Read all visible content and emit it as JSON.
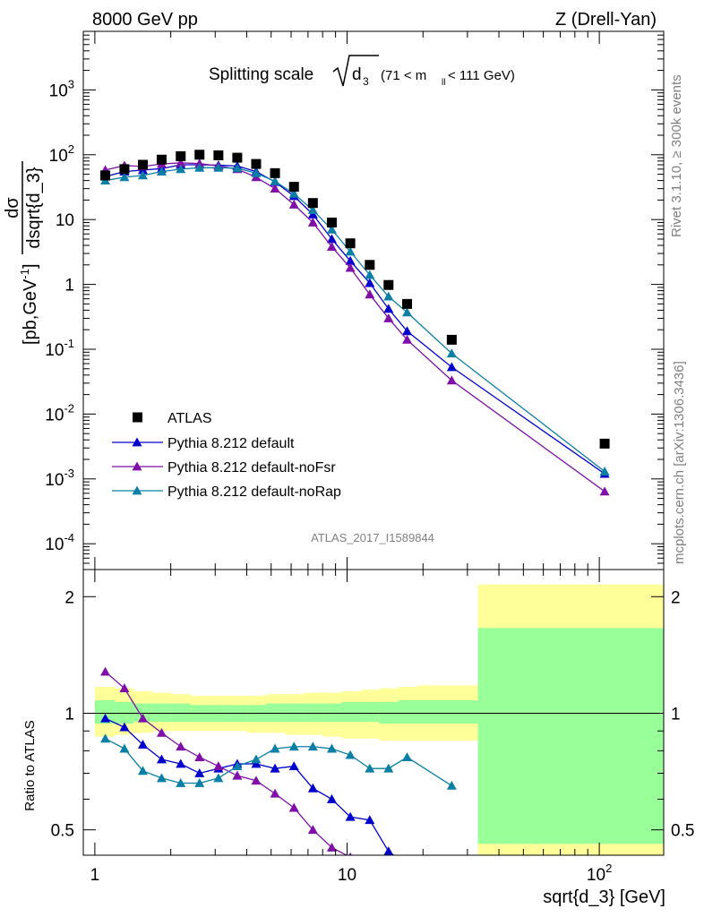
{
  "header": {
    "left": "8000 GeV pp",
    "right": "Z (Drell-Yan)"
  },
  "side": {
    "top": "Rivet 3.1.10, ≥ 300k events",
    "bottom": "mcplots.cern.ch [arXiv:1306.3436]"
  },
  "analysis_id": "ATLAS_2017_I1589844",
  "colors": {
    "atlas": "#000000",
    "default": "#0000cc",
    "noFsr": "#7f0fa6",
    "noRap": "#0a7fa6",
    "band_yellow": "#ffff99",
    "band_green": "#99ff99"
  },
  "chart_data": [
    {
      "type": "scatter",
      "title_main": "Splitting scale",
      "title_sym": "d",
      "title_sub": "3",
      "title_range_pre": "(71 < m",
      "title_range_sub": "ll",
      "title_range_post": " < 111 GeV)",
      "ylabel_num": "dσ",
      "ylabel_den": "dsqrt{d_3}",
      "ylabel_units": "[pb,GeV",
      "ylabel_units_sup": "-1",
      "ylabel_units_close": "]",
      "xscale": "log",
      "yscale": "log",
      "xlim": [
        0.9,
        180
      ],
      "ylim": [
        4e-05,
        8000
      ],
      "yticks": [
        {
          "v": 0.0001,
          "base": "10",
          "exp": "-4"
        },
        {
          "v": 0.001,
          "base": "10",
          "exp": "-3"
        },
        {
          "v": 0.01,
          "base": "10",
          "exp": "-2"
        },
        {
          "v": 0.1,
          "base": "10",
          "exp": "-1"
        },
        {
          "v": 1,
          "base": "1",
          "exp": ""
        },
        {
          "v": 10,
          "base": "10",
          "exp": ""
        },
        {
          "v": 100,
          "base": "10",
          "exp": "2"
        },
        {
          "v": 1000,
          "base": "10",
          "exp": "3"
        }
      ],
      "legend_position": "bottom-left",
      "series": [
        {
          "name": "ATLAS",
          "marker": "square",
          "x": [
            1.1,
            1.31,
            1.55,
            1.84,
            2.19,
            2.6,
            3.09,
            3.67,
            4.36,
            5.18,
            6.16,
            7.32,
            8.7,
            10.3,
            12.3,
            14.6,
            17.3,
            26.0,
            105.0
          ],
          "y": [
            48,
            60,
            70,
            84,
            95,
            100,
            98,
            90,
            72,
            52,
            32,
            18,
            9,
            4.3,
            2.0,
            0.98,
            0.5,
            0.14,
            0.0035
          ]
        },
        {
          "name": "Pythia 8.212 default",
          "marker": "triangle",
          "x": [
            1.1,
            1.31,
            1.55,
            1.84,
            2.19,
            2.6,
            3.09,
            3.67,
            4.36,
            5.18,
            6.16,
            7.32,
            8.7,
            10.3,
            12.3,
            14.6,
            17.3,
            26.0,
            105.0
          ],
          "y": [
            46,
            55,
            58,
            61,
            70,
            70,
            69,
            67,
            55,
            38,
            23,
            12,
            5.0,
            2.3,
            1.05,
            0.42,
            0.19,
            0.053,
            0.0012
          ]
        },
        {
          "name": "Pythia 8.212 default-noFsr",
          "marker": "triangle",
          "x": [
            1.1,
            1.31,
            1.55,
            1.84,
            2.19,
            2.6,
            3.09,
            3.67,
            4.36,
            5.18,
            6.16,
            7.32,
            8.7,
            10.3,
            12.3,
            14.6,
            17.3,
            26.0,
            105.0
          ],
          "y": [
            58,
            68,
            66,
            72,
            75,
            73,
            67,
            60,
            45,
            30,
            17,
            9.0,
            3.8,
            1.8,
            0.7,
            0.3,
            0.14,
            0.033,
            0.00064
          ]
        },
        {
          "name": "Pythia 8.212 default-noRap",
          "marker": "triangle",
          "x": [
            1.1,
            1.31,
            1.55,
            1.84,
            2.19,
            2.6,
            3.09,
            3.67,
            4.36,
            5.18,
            6.16,
            7.32,
            8.7,
            10.3,
            12.3,
            14.6,
            17.3,
            26.0,
            105.0
          ],
          "y": [
            40,
            45,
            48,
            55,
            60,
            63,
            63,
            62,
            52,
            39,
            25,
            14,
            7.0,
            3.2,
            1.4,
            0.65,
            0.37,
            0.086,
            0.0013
          ]
        }
      ]
    },
    {
      "type": "line",
      "ylabel": "Ratio to ATLAS",
      "xlabel": "sqrt{d_3} [GeV]",
      "xscale": "log",
      "yscale": "log",
      "xlim": [
        0.9,
        180
      ],
      "ylim": [
        0.43,
        2.35
      ],
      "xticks": [
        {
          "v": 1,
          "base": "1",
          "exp": ""
        },
        {
          "v": 10,
          "base": "10",
          "exp": ""
        },
        {
          "v": 100,
          "base": "10",
          "exp": "2"
        }
      ],
      "yticks": [
        {
          "v": 0.5,
          "label": "0.5"
        },
        {
          "v": 1,
          "label": "1"
        },
        {
          "v": 2,
          "label": "2"
        }
      ],
      "band_edges": [
        1.0,
        1.2,
        1.42,
        1.69,
        2.01,
        2.39,
        2.84,
        3.38,
        4.01,
        4.77,
        5.67,
        6.74,
        8.01,
        9.52,
        11.3,
        13.4,
        16.0,
        19.0,
        33.0,
        180.0
      ],
      "band_yellow_lo": [
        0.87,
        0.88,
        0.89,
        0.9,
        0.9,
        0.9,
        0.9,
        0.9,
        0.89,
        0.89,
        0.88,
        0.88,
        0.87,
        0.86,
        0.86,
        0.85,
        0.85,
        0.85,
        0.43
      ],
      "band_yellow_hi": [
        1.17,
        1.16,
        1.14,
        1.13,
        1.12,
        1.11,
        1.11,
        1.11,
        1.11,
        1.12,
        1.12,
        1.13,
        1.13,
        1.14,
        1.15,
        1.16,
        1.17,
        1.18,
        2.15
      ],
      "band_green_lo": [
        0.94,
        0.94,
        0.95,
        0.95,
        0.95,
        0.95,
        0.95,
        0.95,
        0.95,
        0.95,
        0.95,
        0.95,
        0.95,
        0.95,
        0.95,
        0.94,
        0.94,
        0.94,
        0.46
      ],
      "band_green_hi": [
        1.08,
        1.07,
        1.06,
        1.06,
        1.06,
        1.05,
        1.05,
        1.05,
        1.05,
        1.06,
        1.06,
        1.06,
        1.06,
        1.07,
        1.07,
        1.07,
        1.08,
        1.08,
        1.66
      ],
      "series": [
        {
          "name": "Pythia 8.212 default",
          "x": [
            1.1,
            1.31,
            1.55,
            1.84,
            2.19,
            2.6,
            3.09,
            3.67,
            4.36,
            5.18,
            6.16,
            7.32,
            8.7,
            10.3,
            12.3,
            14.6,
            17.3
          ],
          "y": [
            0.97,
            0.92,
            0.83,
            0.76,
            0.74,
            0.7,
            0.72,
            0.74,
            0.74,
            0.72,
            0.73,
            0.64,
            0.6,
            0.54,
            0.53,
            0.44,
            0.405
          ]
        },
        {
          "name": "Pythia 8.212 default-noFsr",
          "x": [
            1.1,
            1.31,
            1.55,
            1.84,
            2.19,
            2.6,
            3.09,
            3.67,
            4.36,
            5.18,
            6.16,
            7.32,
            8.7,
            10.3
          ],
          "y": [
            1.28,
            1.16,
            0.97,
            0.89,
            0.82,
            0.77,
            0.73,
            0.69,
            0.67,
            0.62,
            0.57,
            0.5,
            0.45,
            0.425
          ]
        },
        {
          "name": "Pythia 8.212 default-noRap",
          "x": [
            1.1,
            1.31,
            1.55,
            1.84,
            2.19,
            2.6,
            3.09,
            3.67,
            4.36,
            5.18,
            6.16,
            7.32,
            8.7,
            10.3,
            12.3,
            14.6,
            17.3,
            26.0
          ],
          "y": [
            0.86,
            0.81,
            0.71,
            0.68,
            0.66,
            0.66,
            0.68,
            0.73,
            0.76,
            0.81,
            0.82,
            0.82,
            0.81,
            0.78,
            0.72,
            0.72,
            0.77,
            0.65
          ]
        }
      ]
    }
  ]
}
